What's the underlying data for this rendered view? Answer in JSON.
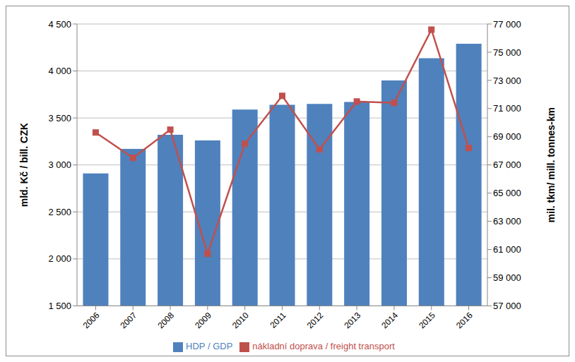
{
  "chart_data": {
    "type": "bar",
    "categories": [
      "2006",
      "2007",
      "2008",
      "2009",
      "2010",
      "2011",
      "2012",
      "2013",
      "2014",
      "2015",
      "2016"
    ],
    "series": [
      {
        "name": "HDP / GDP",
        "type": "bar",
        "color": "#4f81bd",
        "values": [
          2910,
          3170,
          3320,
          3260,
          3590,
          3640,
          3650,
          3670,
          3900,
          4135,
          4290
        ]
      },
      {
        "name": "nákladní doprava / freight transport",
        "type": "line",
        "color": "#c0504d",
        "marker": "square",
        "axis": "y2",
        "values": [
          69300,
          67500,
          69500,
          60700,
          68500,
          71900,
          68100,
          71500,
          71400,
          76600,
          68200
        ]
      }
    ],
    "ylabel": "mld. Kč / bill. CZK",
    "y2label": "mil. tkm/ mill. tonnes-km",
    "ylim": [
      1500,
      4500
    ],
    "yticks": [
      {
        "value": 1500,
        "label": "1 500"
      },
      {
        "value": 2000,
        "label": "2 000"
      },
      {
        "value": 2500,
        "label": "2 500"
      },
      {
        "value": 3000,
        "label": "3 000"
      },
      {
        "value": 3500,
        "label": "3 500"
      },
      {
        "value": 4000,
        "label": "4 000"
      },
      {
        "value": 4500,
        "label": "4 500"
      }
    ],
    "y2lim": [
      57000,
      77000
    ],
    "y2ticks": [
      {
        "value": 57000,
        "label": "57 000"
      },
      {
        "value": 59000,
        "label": "59 000"
      },
      {
        "value": 61000,
        "label": "61 000"
      },
      {
        "value": 63000,
        "label": "63 000"
      },
      {
        "value": 65000,
        "label": "65 000"
      },
      {
        "value": 67000,
        "label": "67 000"
      },
      {
        "value": 69000,
        "label": "69 000"
      },
      {
        "value": 71000,
        "label": "71 000"
      },
      {
        "value": 73000,
        "label": "73 000"
      },
      {
        "value": 75000,
        "label": "75 000"
      },
      {
        "value": 77000,
        "label": "77 000"
      }
    ],
    "grid": true,
    "legend": "bottom"
  }
}
